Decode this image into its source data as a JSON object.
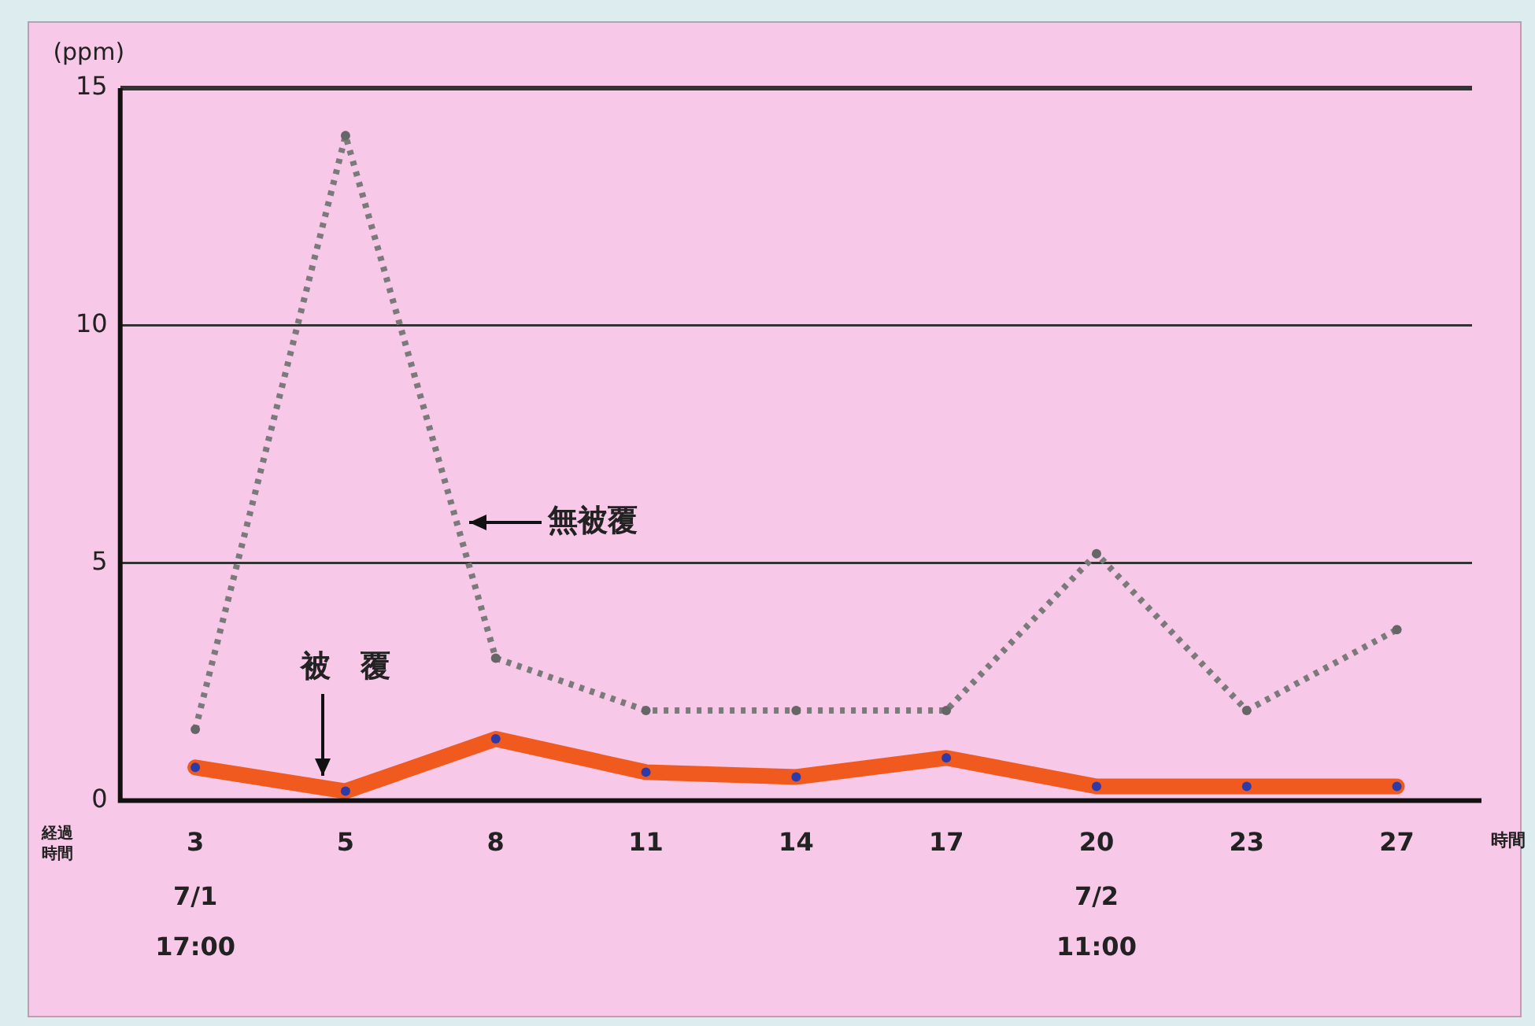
{
  "chart_data": {
    "type": "line",
    "ylabel": "(ppm)",
    "xlabel": "時間",
    "categories": [
      "3",
      "5",
      "8",
      "11",
      "14",
      "17",
      "20",
      "23",
      "27"
    ],
    "series": [
      {
        "name": "無被覆",
        "color": "#7a7a7a",
        "line_style": "dotted",
        "values": [
          1.5,
          14.0,
          3.0,
          1.9,
          1.9,
          1.9,
          5.2,
          1.9,
          3.6
        ]
      },
      {
        "name": "被　覆",
        "color": "#f05a1e",
        "line_style": "solid",
        "values": [
          0.7,
          0.2,
          1.3,
          0.6,
          0.5,
          0.9,
          0.3,
          0.3,
          0.3
        ]
      }
    ],
    "ylim": [
      0,
      15
    ],
    "yticks": [
      0,
      5,
      10,
      15
    ],
    "grid": "y",
    "legend": false,
    "marker": "circle",
    "annotations": [
      "経過時間",
      "7/1 17:00",
      "7/2 11:00"
    ]
  }
}
